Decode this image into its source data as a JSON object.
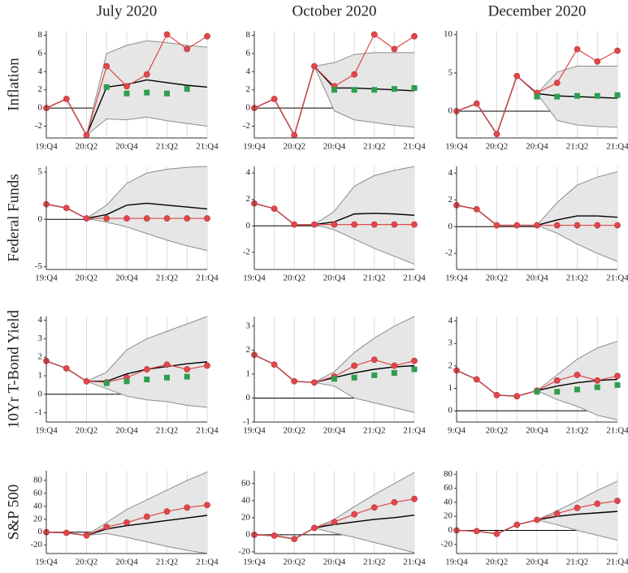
{
  "column_titles": [
    "July 2020",
    "October 2020",
    "December 2020"
  ],
  "row_titles": [
    "Inflation",
    "Federal Funds",
    "10Yr T-Bond Yield",
    "S&P 500"
  ],
  "chart_data": [
    {
      "type": "line",
      "categories": [
        "19:Q4",
        null,
        "20:Q2",
        null,
        "20:Q4",
        null,
        "21:Q2",
        null,
        "21:Q4"
      ],
      "ylim": [
        -3.3,
        8.5
      ],
      "yticks": [
        -2,
        0,
        2,
        4,
        6,
        8
      ],
      "grid": true,
      "zero_line": true,
      "series": [
        {
          "kind": "band",
          "color": "#e6e6e6",
          "edge_color": "#8c8c8c",
          "lower": [
            null,
            null,
            -3,
            -1.2,
            -1.3,
            -1.0,
            -1.4,
            -1.7,
            -2.0
          ],
          "upper": [
            null,
            null,
            -3,
            6.0,
            6.9,
            7.4,
            7.2,
            6.9,
            6.7
          ]
        },
        {
          "kind": "line",
          "color": "#000000",
          "values": [
            0,
            1.0,
            -3.0,
            2.3,
            2.6,
            3.1,
            2.8,
            2.5,
            2.3
          ]
        },
        {
          "kind": "marker-line",
          "color": "#e0474c",
          "values": [
            0,
            1.0,
            -3.0,
            4.6,
            2.4,
            3.7,
            8.1,
            6.5,
            7.9
          ]
        },
        {
          "kind": "squares",
          "color": "#2e9e4f",
          "values": [
            null,
            null,
            null,
            2.3,
            1.6,
            1.7,
            1.6,
            2.1,
            null
          ]
        }
      ]
    },
    {
      "type": "line",
      "categories": [
        "19:Q4",
        null,
        "20:Q2",
        null,
        "20:Q4",
        null,
        "21:Q2",
        null,
        "21:Q4"
      ],
      "ylim": [
        -3.3,
        8.5
      ],
      "yticks": [
        -2,
        0,
        2,
        4,
        6,
        8
      ],
      "grid": true,
      "zero_line": true,
      "series": [
        {
          "kind": "band",
          "color": "#e6e6e6",
          "edge_color": "#8c8c8c",
          "lower": [
            null,
            null,
            null,
            4.6,
            -0.3,
            -1.3,
            -1.6,
            -1.9,
            -2.1
          ],
          "upper": [
            null,
            null,
            null,
            4.6,
            5.0,
            5.9,
            6.1,
            6.1,
            6.1
          ]
        },
        {
          "kind": "line",
          "color": "#000000",
          "values": [
            0,
            1.0,
            -3.0,
            4.6,
            2.2,
            2.2,
            2.1,
            2.0,
            1.9
          ]
        },
        {
          "kind": "marker-line",
          "color": "#e0474c",
          "values": [
            0,
            1.0,
            -3.0,
            4.6,
            2.4,
            3.7,
            8.1,
            6.5,
            7.9
          ]
        },
        {
          "kind": "squares",
          "color": "#2e9e4f",
          "values": [
            null,
            null,
            null,
            null,
            2.0,
            2.0,
            2.0,
            2.1,
            2.2
          ]
        }
      ]
    },
    {
      "type": "line",
      "categories": [
        "19:Q4",
        null,
        "20:Q2",
        null,
        "20:Q4",
        null,
        "21:Q2",
        null,
        "21:Q4"
      ],
      "ylim": [
        -3.5,
        10.5
      ],
      "yticks": [
        0,
        5,
        10
      ],
      "grid": true,
      "zero_line": true,
      "series": [
        {
          "kind": "band",
          "color": "#e6e6e6",
          "edge_color": "#8c8c8c",
          "lower": [
            null,
            null,
            null,
            null,
            2.3,
            -1.2,
            -1.8,
            -2.0,
            -2.1
          ],
          "upper": [
            null,
            null,
            null,
            null,
            2.3,
            5.1,
            5.9,
            5.9,
            5.9
          ]
        },
        {
          "kind": "line",
          "color": "#000000",
          "values": [
            0,
            1.0,
            -3.0,
            4.6,
            2.3,
            2.0,
            1.9,
            1.8,
            1.7
          ]
        },
        {
          "kind": "marker-line",
          "color": "#e0474c",
          "values": [
            0,
            1.0,
            -3.0,
            4.6,
            2.4,
            3.7,
            8.1,
            6.5,
            7.9
          ]
        },
        {
          "kind": "squares",
          "color": "#2e9e4f",
          "values": [
            null,
            null,
            null,
            null,
            1.9,
            1.9,
            2.0,
            2.0,
            2.1
          ]
        }
      ]
    },
    {
      "type": "line",
      "categories": [
        "19:Q4",
        null,
        "20:Q2",
        null,
        "20:Q4",
        null,
        "21:Q2",
        null,
        "21:Q4"
      ],
      "ylim": [
        -5.3,
        5.6
      ],
      "yticks": [
        -5,
        0,
        5
      ],
      "grid": true,
      "zero_line": true,
      "series": [
        {
          "kind": "band",
          "color": "#e6e6e6",
          "edge_color": "#8c8c8c",
          "lower": [
            null,
            null,
            0.1,
            -0.3,
            -0.8,
            -1.5,
            -2.2,
            -2.8,
            -3.3
          ],
          "upper": [
            null,
            null,
            0.1,
            1.5,
            3.8,
            4.9,
            5.3,
            5.5,
            5.6
          ]
        },
        {
          "kind": "line",
          "color": "#000000",
          "values": [
            1.6,
            1.2,
            0.1,
            0.5,
            1.5,
            1.7,
            1.5,
            1.3,
            1.1
          ]
        },
        {
          "kind": "marker-line",
          "color": "#e0474c",
          "values": [
            1.6,
            1.2,
            0.1,
            0.1,
            0.1,
            0.1,
            0.1,
            0.1,
            0.1
          ]
        }
      ]
    },
    {
      "type": "line",
      "categories": [
        "19:Q4",
        null,
        "20:Q2",
        null,
        "20:Q4",
        null,
        "21:Q2",
        null,
        "21:Q4"
      ],
      "ylim": [
        -3.3,
        4.5
      ],
      "yticks": [
        -2,
        0,
        2,
        4
      ],
      "grid": true,
      "zero_line": true,
      "series": [
        {
          "kind": "band",
          "color": "#e6e6e6",
          "edge_color": "#8c8c8c",
          "lower": [
            null,
            null,
            null,
            0.1,
            -0.3,
            -1.0,
            -1.7,
            -2.3,
            -2.9
          ],
          "upper": [
            null,
            null,
            null,
            0.1,
            1.1,
            3.0,
            3.8,
            4.2,
            4.5
          ]
        },
        {
          "kind": "line",
          "color": "#000000",
          "values": [
            1.7,
            1.3,
            0.1,
            0.1,
            0.3,
            0.9,
            0.95,
            0.9,
            0.8
          ]
        },
        {
          "kind": "marker-line",
          "color": "#e0474c",
          "values": [
            1.7,
            1.3,
            0.1,
            0.1,
            0.1,
            0.1,
            0.1,
            0.1,
            0.1
          ]
        }
      ]
    },
    {
      "type": "line",
      "categories": [
        "19:Q4",
        null,
        "20:Q2",
        null,
        "20:Q4",
        null,
        "21:Q2",
        null,
        "21:Q4"
      ],
      "ylim": [
        -3.2,
        4.5
      ],
      "yticks": [
        -2,
        0,
        2,
        4
      ],
      "grid": true,
      "zero_line": true,
      "series": [
        {
          "kind": "band",
          "color": "#e6e6e6",
          "edge_color": "#8c8c8c",
          "lower": [
            null,
            null,
            null,
            null,
            0.1,
            -0.5,
            -1.3,
            -2.0,
            -2.6
          ],
          "upper": [
            null,
            null,
            null,
            null,
            0.1,
            1.8,
            3.1,
            3.7,
            4.1
          ]
        },
        {
          "kind": "line",
          "color": "#000000",
          "values": [
            1.6,
            1.3,
            0.1,
            0.1,
            0.1,
            0.5,
            0.8,
            0.8,
            0.7
          ]
        },
        {
          "kind": "marker-line",
          "color": "#e0474c",
          "values": [
            1.6,
            1.3,
            0.1,
            0.1,
            0.1,
            0.1,
            0.1,
            0.1,
            0.1
          ]
        }
      ]
    },
    {
      "type": "line",
      "categories": [
        "19:Q4",
        null,
        "20:Q2",
        null,
        "20:Q4",
        null,
        "21:Q2",
        null,
        "21:Q4"
      ],
      "ylim": [
        -1.5,
        4.2
      ],
      "yticks": [
        -1,
        0,
        1,
        2,
        3,
        4
      ],
      "grid": true,
      "zero_line": true,
      "series": [
        {
          "kind": "band",
          "color": "#e6e6e6",
          "edge_color": "#8c8c8c",
          "lower": [
            null,
            null,
            0.7,
            0.3,
            -0.1,
            -0.3,
            -0.4,
            -0.6,
            -0.7
          ],
          "upper": [
            null,
            null,
            0.7,
            1.2,
            2.4,
            3.0,
            3.4,
            3.8,
            4.2
          ]
        },
        {
          "kind": "line",
          "color": "#000000",
          "values": [
            1.8,
            1.4,
            0.7,
            0.7,
            1.1,
            1.35,
            1.5,
            1.65,
            1.75
          ]
        },
        {
          "kind": "marker-line",
          "color": "#e0474c",
          "values": [
            1.8,
            1.4,
            0.7,
            0.65,
            0.9,
            1.35,
            1.6,
            1.35,
            1.55
          ]
        },
        {
          "kind": "squares",
          "color": "#2e9e4f",
          "values": [
            null,
            null,
            null,
            0.6,
            0.7,
            0.8,
            0.9,
            0.95,
            null
          ]
        }
      ]
    },
    {
      "type": "line",
      "categories": [
        "19:Q4",
        null,
        "20:Q2",
        null,
        "20:Q4",
        null,
        "21:Q2",
        null,
        "21:Q4"
      ],
      "ylim": [
        -1,
        3.4
      ],
      "yticks": [
        -1,
        0,
        1,
        2,
        3
      ],
      "grid": true,
      "zero_line": true,
      "series": [
        {
          "kind": "band",
          "color": "#e6e6e6",
          "edge_color": "#8c8c8c",
          "lower": [
            null,
            null,
            null,
            0.65,
            0.5,
            0.0,
            -0.2,
            -0.4,
            -0.6
          ],
          "upper": [
            null,
            null,
            null,
            0.65,
            1.1,
            1.9,
            2.5,
            3.0,
            3.4
          ]
        },
        {
          "kind": "line",
          "color": "#000000",
          "values": [
            1.8,
            1.4,
            0.7,
            0.65,
            0.85,
            1.05,
            1.2,
            1.3,
            1.35
          ]
        },
        {
          "kind": "marker-line",
          "color": "#e0474c",
          "values": [
            1.8,
            1.4,
            0.7,
            0.65,
            0.9,
            1.35,
            1.6,
            1.35,
            1.55
          ]
        },
        {
          "kind": "squares",
          "color": "#2e9e4f",
          "values": [
            null,
            null,
            null,
            null,
            0.8,
            0.85,
            0.95,
            1.05,
            1.2
          ]
        }
      ]
    },
    {
      "type": "line",
      "categories": [
        "9:Q4",
        null,
        "20:Q2",
        null,
        "20:Q4",
        null,
        "21:Q2",
        null,
        "21:Q4"
      ],
      "ylim": [
        -0.5,
        4.2
      ],
      "yticks": [
        0,
        1,
        2,
        3,
        4
      ],
      "grid": true,
      "zero_line": true,
      "series": [
        {
          "kind": "band",
          "color": "#e6e6e6",
          "edge_color": "#8c8c8c",
          "lower": [
            null,
            null,
            null,
            null,
            0.9,
            0.5,
            0.2,
            -0.2,
            -0.4
          ],
          "upper": [
            null,
            null,
            null,
            null,
            0.9,
            1.6,
            2.3,
            2.8,
            3.1
          ]
        },
        {
          "kind": "line",
          "color": "#000000",
          "values": [
            1.8,
            1.4,
            0.7,
            0.65,
            0.9,
            1.1,
            1.25,
            1.35,
            1.4
          ]
        },
        {
          "kind": "marker-line",
          "color": "#e0474c",
          "values": [
            1.8,
            1.4,
            0.7,
            0.65,
            0.9,
            1.35,
            1.6,
            1.35,
            1.55
          ]
        },
        {
          "kind": "squares",
          "color": "#2e9e4f",
          "values": [
            null,
            null,
            null,
            null,
            0.85,
            0.85,
            0.95,
            1.05,
            1.15
          ]
        }
      ]
    },
    {
      "type": "line",
      "categories": [
        "19:Q4",
        null,
        "20:Q2",
        null,
        "20:Q4",
        null,
        "21:Q2",
        null,
        "21:Q4"
      ],
      "ylim": [
        -33,
        95
      ],
      "yticks": [
        -20,
        0,
        20,
        40,
        60,
        80
      ],
      "grid": true,
      "zero_line": true,
      "series": [
        {
          "kind": "band",
          "color": "#e6e6e6",
          "edge_color": "#8c8c8c",
          "lower": [
            null,
            null,
            -5,
            -2,
            -8,
            -15,
            -22,
            -28,
            -33
          ],
          "upper": [
            null,
            null,
            -5,
            15,
            35,
            50,
            65,
            80,
            93
          ]
        },
        {
          "kind": "line",
          "color": "#000000",
          "values": [
            0,
            -1,
            -5,
            5,
            10,
            14,
            18,
            22,
            26
          ]
        },
        {
          "kind": "marker-line",
          "color": "#e0474c",
          "values": [
            0,
            -1,
            -5,
            8,
            15,
            24,
            32,
            38,
            42
          ]
        }
      ]
    },
    {
      "type": "line",
      "categories": [
        "19:Q4",
        null,
        "20:Q2",
        null,
        "20:Q4",
        null,
        "21:Q2",
        null,
        "21:Q4"
      ],
      "ylim": [
        -22,
        75
      ],
      "yticks": [
        -20,
        0,
        20,
        40,
        60
      ],
      "grid": true,
      "zero_line": true,
      "series": [
        {
          "kind": "band",
          "color": "#e6e6e6",
          "edge_color": "#8c8c8c",
          "lower": [
            null,
            null,
            null,
            8,
            2,
            -3,
            -9,
            -15,
            -21
          ],
          "upper": [
            null,
            null,
            null,
            8,
            18,
            33,
            47,
            60,
            73
          ]
        },
        {
          "kind": "line",
          "color": "#000000",
          "values": [
            0,
            -1,
            -5,
            8,
            12,
            15,
            18,
            20,
            23
          ]
        },
        {
          "kind": "marker-line",
          "color": "#e0474c",
          "values": [
            0,
            -1,
            -5,
            8,
            15,
            24,
            32,
            38,
            42
          ]
        }
      ]
    },
    {
      "type": "line",
      "categories": [
        "19:Q4",
        null,
        "20:Q2",
        null,
        "20:Q4",
        null,
        "21:Q2",
        null,
        "21:Q4"
      ],
      "ylim": [
        -33,
        85
      ],
      "yticks": [
        -20,
        0,
        20,
        40,
        60,
        80
      ],
      "grid": true,
      "zero_line": true,
      "series": [
        {
          "kind": "band",
          "color": "#e6e6e6",
          "edge_color": "#8c8c8c",
          "lower": [
            null,
            null,
            null,
            null,
            15,
            8,
            0,
            -7,
            -14
          ],
          "upper": [
            null,
            null,
            null,
            null,
            15,
            28,
            42,
            57,
            70
          ]
        },
        {
          "kind": "line",
          "color": "#000000",
          "values": [
            0,
            -1,
            -5,
            8,
            15,
            20,
            23,
            25,
            27
          ]
        },
        {
          "kind": "marker-line",
          "color": "#e0474c",
          "values": [
            0,
            -1,
            -5,
            8,
            15,
            24,
            32,
            38,
            42
          ]
        }
      ]
    }
  ]
}
